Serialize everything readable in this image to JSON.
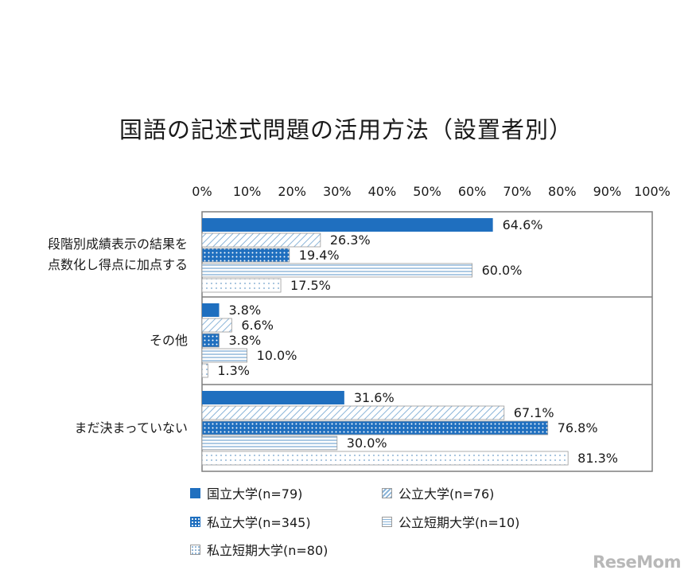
{
  "title": "国語の記述式問題の活用方法（設置者別）",
  "watermark": "ReseMom",
  "colors": {
    "primary": "#1f6fbf",
    "hatch": "#8ab4d8",
    "frame": "#7f7f7f"
  },
  "chart_data": {
    "type": "bar",
    "orientation": "horizontal",
    "title": "国語の記述式問題の活用方法（設置者別）",
    "xlim": [
      0,
      100
    ],
    "xticks": [
      "0%",
      "10%",
      "20%",
      "30%",
      "40%",
      "50%",
      "60%",
      "70%",
      "80%",
      "90%",
      "100%"
    ],
    "categories": [
      [
        "段階別成績表示の結果を",
        "点数化し得点に加点する"
      ],
      [
        "その他"
      ],
      [
        "まだ決まっていない"
      ]
    ],
    "series": [
      {
        "name": "国立大学(n=79)",
        "pattern": "solid",
        "values": [
          64.6,
          3.8,
          31.6
        ],
        "labels": [
          "64.6%",
          "3.8%",
          "31.6%"
        ]
      },
      {
        "name": "公立大学(n=76)",
        "pattern": "diagonal",
        "values": [
          26.3,
          6.6,
          67.1
        ],
        "labels": [
          "26.3%",
          "6.6%",
          "67.1%"
        ]
      },
      {
        "name": "私立大学(n=345)",
        "pattern": "dots-dense",
        "values": [
          19.4,
          3.8,
          76.8
        ],
        "labels": [
          "19.4%",
          "3.8%",
          "76.8%"
        ]
      },
      {
        "name": "公立短期大学(n=10)",
        "pattern": "horizontal",
        "values": [
          60.0,
          10.0,
          30.0
        ],
        "labels": [
          "60.0%",
          "10.0%",
          "30.0%"
        ]
      },
      {
        "name": "私立短期大学(n=80)",
        "pattern": "dots-sparse",
        "values": [
          17.5,
          1.3,
          81.3
        ],
        "labels": [
          "17.5%",
          "1.3%",
          "81.3%"
        ]
      }
    ],
    "legend_position": "bottom"
  }
}
